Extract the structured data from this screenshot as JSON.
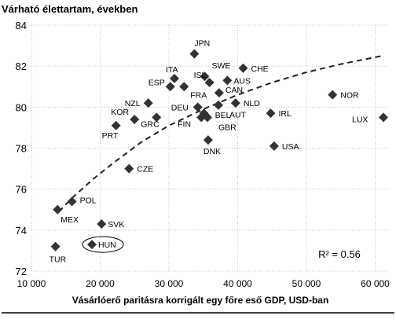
{
  "chart_data": {
    "type": "scatter",
    "title": "Várható élettartam, években",
    "xlabel": "Vásárlóerő paritásra korrigált egy főre eső GDP, USD-ban",
    "ylabel": "",
    "xlim": [
      10000,
      62000
    ],
    "ylim": [
      72,
      84
    ],
    "x_ticks": [
      10000,
      20000,
      30000,
      40000,
      50000,
      60000
    ],
    "x_tick_labels": [
      "10 000",
      "20 000",
      "30 000",
      "40 000",
      "50 000",
      "60 000"
    ],
    "y_ticks": [
      72,
      74,
      76,
      78,
      80,
      82,
      84
    ],
    "y_tick_labels": [
      "72",
      "74",
      "76",
      "78",
      "80",
      "82",
      "84"
    ],
    "grid": true,
    "r2_label": "R² = 0.56",
    "marker_color": "#333333",
    "trend_color": "#222222",
    "highlight": "HUN",
    "points": [
      {
        "label": "JPN",
        "x": 33700,
        "y": 82.6,
        "lx": 0,
        "ly": -14
      },
      {
        "label": "SWE",
        "x": 35200,
        "y": 81.5,
        "lx": 9,
        "ly": -14
      },
      {
        "label": "ITA",
        "x": 30800,
        "y": 81.4,
        "lx": -11,
        "ly": -12
      },
      {
        "label": "ESP",
        "x": 30200,
        "y": 81.0,
        "lx": -28,
        "ly": -6
      },
      {
        "label": "ISL",
        "x": 35900,
        "y": 81.2,
        "lx": -20,
        "ly": -10
      },
      {
        "label": "FRA",
        "x": 32200,
        "y": 81.0,
        "lx": 8,
        "ly": 10
      },
      {
        "label": "CHE",
        "x": 40800,
        "y": 81.9,
        "lx": 10,
        "ly": 0
      },
      {
        "label": "AUS",
        "x": 38500,
        "y": 81.3,
        "lx": 8,
        "ly": 0
      },
      {
        "label": "CAN",
        "x": 37300,
        "y": 80.7,
        "lx": 8,
        "ly": -4
      },
      {
        "label": "NLD",
        "x": 39700,
        "y": 80.2,
        "lx": 10,
        "ly": 0
      },
      {
        "label": "DEU",
        "x": 34200,
        "y": 80.0,
        "lx": -34,
        "ly": 0
      },
      {
        "label": "BEL",
        "x": 35100,
        "y": 79.7,
        "lx": 14,
        "ly": 2
      },
      {
        "label": "FIN",
        "x": 34700,
        "y": 79.5,
        "lx": -30,
        "ly": 8
      },
      {
        "label": "GBR",
        "x": 35600,
        "y": 79.5,
        "lx": 14,
        "ly": 12
      },
      {
        "label": "AUT",
        "x": 37200,
        "y": 80.1,
        "lx": 14,
        "ly": 12
      },
      {
        "label": "DNK",
        "x": 35700,
        "y": 78.4,
        "lx": -6,
        "ly": 14
      },
      {
        "label": "IRL",
        "x": 44800,
        "y": 79.7,
        "lx": 10,
        "ly": 0
      },
      {
        "label": "USA",
        "x": 45300,
        "y": 78.1,
        "lx": 10,
        "ly": 0
      },
      {
        "label": "NOR",
        "x": 53800,
        "y": 80.6,
        "lx": 10,
        "ly": 0
      },
      {
        "label": "LUX",
        "x": 61200,
        "y": 79.5,
        "lx": -40,
        "ly": 2
      },
      {
        "label": "NZL",
        "x": 27000,
        "y": 80.2,
        "lx": -30,
        "ly": 0
      },
      {
        "label": "KOR",
        "x": 25000,
        "y": 79.4,
        "lx": -30,
        "ly": -10
      },
      {
        "label": "PRT",
        "x": 22300,
        "y": 79.1,
        "lx": -18,
        "ly": 12
      },
      {
        "label": "GRC",
        "x": 28200,
        "y": 79.5,
        "lx": -20,
        "ly": 8
      },
      {
        "label": "CZE",
        "x": 24200,
        "y": 77.0,
        "lx": 10,
        "ly": 0
      },
      {
        "label": "POL",
        "x": 15900,
        "y": 75.4,
        "lx": 10,
        "ly": -2
      },
      {
        "label": "MEX",
        "x": 13800,
        "y": 75.0,
        "lx": 4,
        "ly": 12
      },
      {
        "label": "SVK",
        "x": 20200,
        "y": 74.3,
        "lx": 8,
        "ly": 0
      },
      {
        "label": "TUR",
        "x": 13500,
        "y": 73.2,
        "lx": -8,
        "ly": 16
      },
      {
        "label": "HUN",
        "x": 18800,
        "y": 73.3,
        "lx": 8,
        "ly": 0
      }
    ],
    "trendline": [
      {
        "x": 14000,
        "y": 74.9
      },
      {
        "x": 16000,
        "y": 75.6
      },
      {
        "x": 19000,
        "y": 76.5
      },
      {
        "x": 22000,
        "y": 77.3
      },
      {
        "x": 26000,
        "y": 78.3
      },
      {
        "x": 30000,
        "y": 79.1
      },
      {
        "x": 35000,
        "y": 79.9
      },
      {
        "x": 40000,
        "y": 80.6
      },
      {
        "x": 45000,
        "y": 81.2
      },
      {
        "x": 50000,
        "y": 81.7
      },
      {
        "x": 55000,
        "y": 82.1
      },
      {
        "x": 61000,
        "y": 82.5
      }
    ]
  }
}
